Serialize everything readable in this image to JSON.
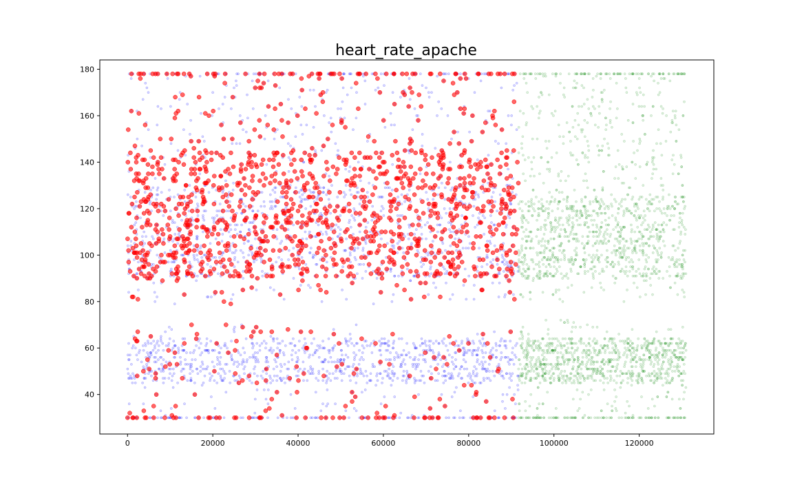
{
  "chart_data": {
    "type": "scatter",
    "title": "heart_rate_apache",
    "xlabel": "",
    "ylabel": "",
    "xlim": [
      -6500,
      137500
    ],
    "ylim": [
      23,
      184
    ],
    "xticks": [
      0,
      20000,
      40000,
      60000,
      80000,
      100000,
      120000
    ],
    "yticks": [
      40,
      60,
      80,
      100,
      120,
      140,
      160,
      180
    ],
    "grid": false,
    "legend": "none",
    "series": [
      {
        "color": "#0000ff",
        "marker_alpha": 0.15,
        "x_range": [
          0,
          91700
        ],
        "y_clusters": [
          [
            30,
            70
          ],
          [
            79,
            178
          ]
        ],
        "dense_bands": [
          [
            45,
            64
          ],
          [
            90,
            130
          ]
        ]
      },
      {
        "color": "#ff0000",
        "marker_alpha": 0.6,
        "x_range": [
          0,
          91700
        ],
        "y_clusters": [
          [
            30,
            70
          ],
          [
            79,
            178
          ]
        ],
        "dense_bands": [
          [
            90,
            145
          ]
        ]
      },
      {
        "color": "#008000",
        "marker_alpha": 0.12,
        "x_range": [
          91700,
          131000
        ],
        "y_clusters": [
          [
            30,
            72
          ],
          [
            80,
            178
          ]
        ],
        "dense_bands": [
          [
            45,
            64
          ],
          [
            90,
            125
          ]
        ]
      }
    ]
  }
}
